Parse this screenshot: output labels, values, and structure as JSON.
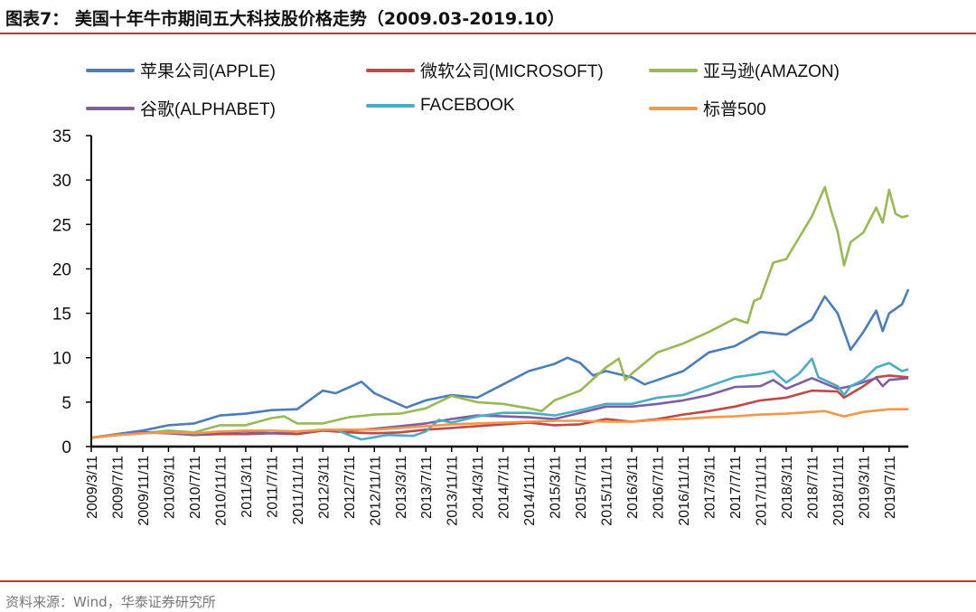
{
  "title": "图表7：  美国十年牛市期间五大科技股价格走势（2009.03-2019.10）",
  "source": "资料来源：Wind，华泰证券研究所",
  "chart_data": {
    "type": "line",
    "title": "图表7：  美国十年牛市期间五大科技股价格走势（2009.03-2019.10）",
    "xlabel": "",
    "ylabel": "",
    "ylim": [
      0,
      35
    ],
    "yticks": [
      "0",
      "5",
      "10",
      "15",
      "20",
      "25",
      "30",
      "35"
    ],
    "xticks": [
      "2009/3/11",
      "2009/7/11",
      "2009/11/11",
      "2010/3/11",
      "2010/7/11",
      "2010/11/11",
      "2011/3/11",
      "2011/7/11",
      "2011/11/11",
      "2012/3/11",
      "2012/7/11",
      "2012/11/11",
      "2013/3/11",
      "2013/7/11",
      "2013/11/11",
      "2014/3/11",
      "2014/7/11",
      "2014/11/11",
      "2015/3/11",
      "2015/7/11",
      "2015/11/11",
      "2016/3/11",
      "2016/7/11",
      "2016/11/11",
      "2017/3/11",
      "2017/7/11",
      "2017/11/11",
      "2018/3/11",
      "2018/7/11",
      "2018/11/11",
      "2019/3/11",
      "2019/7/11"
    ],
    "xrange": [
      "2009-03",
      "2019-10"
    ],
    "grid": false,
    "legend_position": "top",
    "series": [
      {
        "name": "苹果公司(APPLE)",
        "color": "#4a7ebb",
        "points": [
          [
            "2009-03",
            1
          ],
          [
            "2009-07",
            1.4
          ],
          [
            "2009-11",
            1.8
          ],
          [
            "2010-03",
            2.4
          ],
          [
            "2010-07",
            2.6
          ],
          [
            "2010-11",
            3.5
          ],
          [
            "2011-03",
            3.7
          ],
          [
            "2011-07",
            4.1
          ],
          [
            "2011-11",
            4.2
          ],
          [
            "2012-03",
            6.3
          ],
          [
            "2012-05",
            6.0
          ],
          [
            "2012-09",
            7.3
          ],
          [
            "2012-11",
            6.0
          ],
          [
            "2013-03",
            4.7
          ],
          [
            "2013-04",
            4.4
          ],
          [
            "2013-07",
            5.2
          ],
          [
            "2013-11",
            5.8
          ],
          [
            "2014-03",
            5.5
          ],
          [
            "2014-07",
            7.0
          ],
          [
            "2014-11",
            8.5
          ],
          [
            "2015-03",
            9.3
          ],
          [
            "2015-05",
            10.0
          ],
          [
            "2015-07",
            9.4
          ],
          [
            "2015-09",
            8.0
          ],
          [
            "2015-11",
            8.5
          ],
          [
            "2016-03",
            7.8
          ],
          [
            "2016-05",
            7.0
          ],
          [
            "2016-07",
            7.5
          ],
          [
            "2016-11",
            8.5
          ],
          [
            "2017-03",
            10.6
          ],
          [
            "2017-07",
            11.3
          ],
          [
            "2017-11",
            12.9
          ],
          [
            "2018-03",
            12.6
          ],
          [
            "2018-07",
            14.3
          ],
          [
            "2018-09",
            16.9
          ],
          [
            "2018-11",
            15.0
          ],
          [
            "2019-01",
            10.9
          ],
          [
            "2019-03",
            12.9
          ],
          [
            "2019-05",
            15.3
          ],
          [
            "2019-06",
            13.0
          ],
          [
            "2019-07",
            15.0
          ],
          [
            "2019-09",
            16.0
          ],
          [
            "2019-10",
            17.7
          ]
        ]
      },
      {
        "name": "微软公司(MICROSOFT)",
        "color": "#be4b48",
        "points": [
          [
            "2009-03",
            1
          ],
          [
            "2009-07",
            1.3
          ],
          [
            "2009-11",
            1.6
          ],
          [
            "2010-03",
            1.6
          ],
          [
            "2010-07",
            1.3
          ],
          [
            "2010-11",
            1.4
          ],
          [
            "2011-03",
            1.4
          ],
          [
            "2011-07",
            1.5
          ],
          [
            "2011-11",
            1.4
          ],
          [
            "2012-03",
            1.8
          ],
          [
            "2012-07",
            1.6
          ],
          [
            "2012-11",
            1.5
          ],
          [
            "2013-03",
            1.6
          ],
          [
            "2013-07",
            1.9
          ],
          [
            "2013-11",
            2.1
          ],
          [
            "2014-03",
            2.3
          ],
          [
            "2014-07",
            2.5
          ],
          [
            "2014-11",
            2.7
          ],
          [
            "2015-03",
            2.4
          ],
          [
            "2015-07",
            2.5
          ],
          [
            "2015-11",
            3.1
          ],
          [
            "2016-03",
            2.8
          ],
          [
            "2016-07",
            3.1
          ],
          [
            "2016-11",
            3.6
          ],
          [
            "2017-03",
            4.0
          ],
          [
            "2017-07",
            4.5
          ],
          [
            "2017-11",
            5.2
          ],
          [
            "2018-03",
            5.5
          ],
          [
            "2018-07",
            6.3
          ],
          [
            "2018-11",
            6.2
          ],
          [
            "2018-12",
            5.5
          ],
          [
            "2019-03",
            6.8
          ],
          [
            "2019-05",
            7.8
          ],
          [
            "2019-07",
            8.0
          ],
          [
            "2019-10",
            7.8
          ]
        ]
      },
      {
        "name": "亚马逊(AMAZON)",
        "color": "#98b954",
        "points": [
          [
            "2009-03",
            1
          ],
          [
            "2009-07",
            1.3
          ],
          [
            "2009-11",
            1.5
          ],
          [
            "2010-03",
            1.8
          ],
          [
            "2010-07",
            1.6
          ],
          [
            "2010-11",
            2.4
          ],
          [
            "2011-03",
            2.4
          ],
          [
            "2011-07",
            3.2
          ],
          [
            "2011-09",
            3.4
          ],
          [
            "2011-11",
            2.6
          ],
          [
            "2012-03",
            2.6
          ],
          [
            "2012-07",
            3.3
          ],
          [
            "2012-11",
            3.6
          ],
          [
            "2013-03",
            3.7
          ],
          [
            "2013-07",
            4.3
          ],
          [
            "2013-11",
            5.7
          ],
          [
            "2014-03",
            5.0
          ],
          [
            "2014-07",
            4.8
          ],
          [
            "2014-11",
            4.3
          ],
          [
            "2015-01",
            4.0
          ],
          [
            "2015-03",
            5.2
          ],
          [
            "2015-07",
            6.3
          ],
          [
            "2015-11",
            8.9
          ],
          [
            "2016-01",
            9.9
          ],
          [
            "2016-02",
            7.5
          ],
          [
            "2016-03",
            8.2
          ],
          [
            "2016-07",
            10.6
          ],
          [
            "2016-11",
            11.6
          ],
          [
            "2017-03",
            12.9
          ],
          [
            "2017-07",
            14.4
          ],
          [
            "2017-09",
            13.9
          ],
          [
            "2017-10",
            16.4
          ],
          [
            "2017-11",
            16.7
          ],
          [
            "2018-01",
            20.7
          ],
          [
            "2018-03",
            21.1
          ],
          [
            "2018-05",
            23.5
          ],
          [
            "2018-07",
            25.9
          ],
          [
            "2018-09",
            29.2
          ],
          [
            "2018-10",
            26.5
          ],
          [
            "2018-11",
            24.2
          ],
          [
            "2018-12",
            20.4
          ],
          [
            "2019-01",
            23.0
          ],
          [
            "2019-03",
            24.1
          ],
          [
            "2019-05",
            26.9
          ],
          [
            "2019-06",
            25.2
          ],
          [
            "2019-07",
            28.9
          ],
          [
            "2019-08",
            26.2
          ],
          [
            "2019-09",
            25.8
          ],
          [
            "2019-10",
            26.0
          ]
        ]
      },
      {
        "name": "谷歌(ALPHABET)",
        "color": "#7d60a0",
        "points": [
          [
            "2009-03",
            1
          ],
          [
            "2009-07",
            1.3
          ],
          [
            "2009-11",
            1.6
          ],
          [
            "2010-03",
            1.5
          ],
          [
            "2010-07",
            1.3
          ],
          [
            "2010-11",
            1.6
          ],
          [
            "2011-03",
            1.7
          ],
          [
            "2011-07",
            1.5
          ],
          [
            "2011-11",
            1.7
          ],
          [
            "2012-03",
            1.8
          ],
          [
            "2012-07",
            1.8
          ],
          [
            "2012-11",
            2.0
          ],
          [
            "2013-03",
            2.3
          ],
          [
            "2013-07",
            2.6
          ],
          [
            "2013-11",
            3.1
          ],
          [
            "2014-03",
            3.5
          ],
          [
            "2014-07",
            3.4
          ],
          [
            "2014-11",
            3.3
          ],
          [
            "2015-03",
            3.1
          ],
          [
            "2015-07",
            3.8
          ],
          [
            "2015-11",
            4.5
          ],
          [
            "2016-03",
            4.5
          ],
          [
            "2016-07",
            4.8
          ],
          [
            "2016-11",
            5.2
          ],
          [
            "2017-03",
            5.8
          ],
          [
            "2017-07",
            6.7
          ],
          [
            "2017-11",
            6.8
          ],
          [
            "2018-01",
            7.5
          ],
          [
            "2018-03",
            6.5
          ],
          [
            "2018-07",
            7.7
          ],
          [
            "2018-11",
            6.5
          ],
          [
            "2019-01",
            6.8
          ],
          [
            "2019-05",
            7.7
          ],
          [
            "2019-06",
            6.8
          ],
          [
            "2019-07",
            7.5
          ],
          [
            "2019-10",
            7.7
          ]
        ]
      },
      {
        "name": "FACEBOOK",
        "color": "#4bacc6",
        "points": [
          [
            "2012-05",
            1.9
          ],
          [
            "2012-07",
            1.3
          ],
          [
            "2012-09",
            0.8
          ],
          [
            "2013-01",
            1.3
          ],
          [
            "2013-05",
            1.2
          ],
          [
            "2013-07",
            1.7
          ],
          [
            "2013-09",
            3.0
          ],
          [
            "2013-11",
            2.7
          ],
          [
            "2014-03",
            3.4
          ],
          [
            "2014-07",
            3.8
          ],
          [
            "2014-11",
            3.8
          ],
          [
            "2015-03",
            3.5
          ],
          [
            "2015-07",
            4.1
          ],
          [
            "2015-11",
            4.8
          ],
          [
            "2016-03",
            4.8
          ],
          [
            "2016-07",
            5.5
          ],
          [
            "2016-11",
            5.8
          ],
          [
            "2017-03",
            6.8
          ],
          [
            "2017-07",
            7.8
          ],
          [
            "2017-11",
            8.2
          ],
          [
            "2018-01",
            8.5
          ],
          [
            "2018-03",
            7.2
          ],
          [
            "2018-05",
            8.2
          ],
          [
            "2018-07",
            9.9
          ],
          [
            "2018-08",
            7.8
          ],
          [
            "2018-11",
            6.8
          ],
          [
            "2018-12",
            5.8
          ],
          [
            "2019-01",
            6.8
          ],
          [
            "2019-03",
            7.5
          ],
          [
            "2019-05",
            8.9
          ],
          [
            "2019-07",
            9.4
          ],
          [
            "2019-09",
            8.5
          ],
          [
            "2019-10",
            8.7
          ]
        ]
      },
      {
        "name": "标普500",
        "color": "#f79646",
        "points": [
          [
            "2009-03",
            1
          ],
          [
            "2009-07",
            1.3
          ],
          [
            "2009-11",
            1.5
          ],
          [
            "2010-03",
            1.6
          ],
          [
            "2010-07",
            1.5
          ],
          [
            "2010-11",
            1.7
          ],
          [
            "2011-03",
            1.8
          ],
          [
            "2011-07",
            1.8
          ],
          [
            "2011-11",
            1.7
          ],
          [
            "2012-03",
            1.9
          ],
          [
            "2012-07",
            1.9
          ],
          [
            "2012-11",
            1.9
          ],
          [
            "2013-03",
            2.1
          ],
          [
            "2013-07",
            2.3
          ],
          [
            "2013-11",
            2.5
          ],
          [
            "2014-03",
            2.6
          ],
          [
            "2014-07",
            2.7
          ],
          [
            "2014-11",
            2.8
          ],
          [
            "2015-03",
            2.9
          ],
          [
            "2015-07",
            2.9
          ],
          [
            "2015-11",
            2.8
          ],
          [
            "2016-03",
            2.8
          ],
          [
            "2016-07",
            3.0
          ],
          [
            "2016-11",
            3.1
          ],
          [
            "2017-03",
            3.3
          ],
          [
            "2017-07",
            3.4
          ],
          [
            "2017-11",
            3.6
          ],
          [
            "2018-03",
            3.7
          ],
          [
            "2018-07",
            3.9
          ],
          [
            "2018-09",
            4.0
          ],
          [
            "2018-12",
            3.4
          ],
          [
            "2019-03",
            3.9
          ],
          [
            "2019-07",
            4.2
          ],
          [
            "2019-10",
            4.2
          ]
        ]
      }
    ]
  }
}
